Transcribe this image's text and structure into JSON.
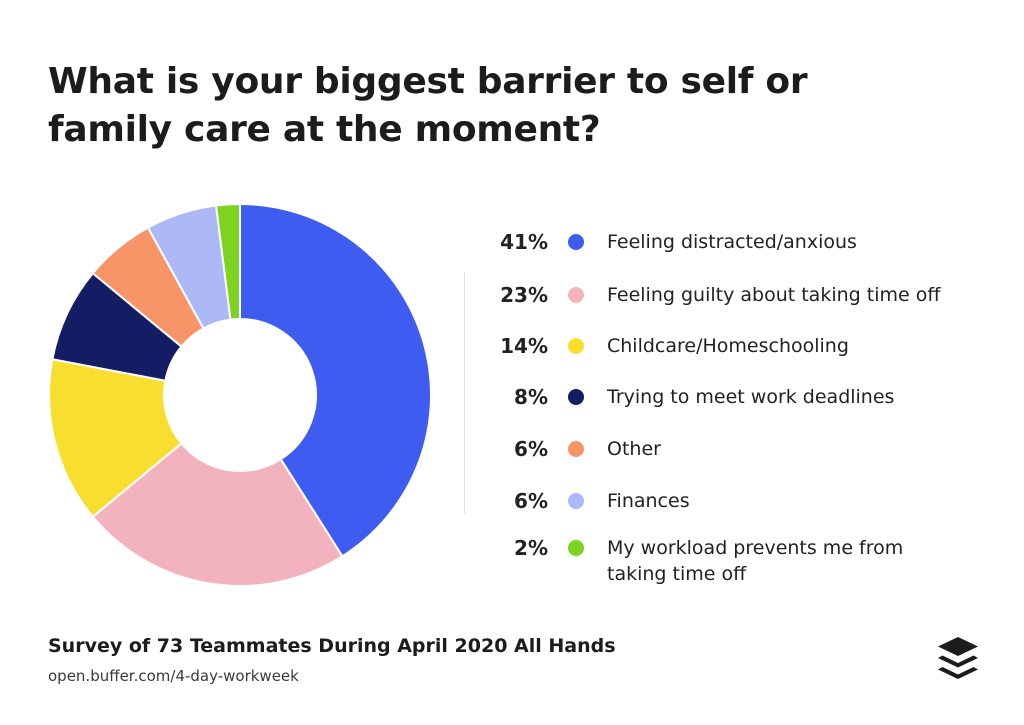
{
  "title_lines": [
    "What is your biggest barrier to self or",
    "family care at the moment?"
  ],
  "footer": {
    "title": "Survey of 73 Teammates During April 2020 All Hands",
    "url": "open.buffer.com/4-day-workweek"
  },
  "logo": {
    "icon": "buffer-stack-icon"
  },
  "legend": [
    {
      "percent": "41%",
      "label_lines": [
        "Feeling distracted/anxious"
      ],
      "color": "#3f5cf0"
    },
    {
      "percent": "23%",
      "label_lines": [
        "Feeling guilty about taking time off"
      ],
      "color": "#f2b3bf"
    },
    {
      "percent": "14%",
      "label_lines": [
        "Childcare/Homeschooling"
      ],
      "color": "#f8df2f"
    },
    {
      "percent": "8%",
      "label_lines": [
        "Trying to meet work deadlines"
      ],
      "color": "#141d63"
    },
    {
      "percent": "6%",
      "label_lines": [
        "Other"
      ],
      "color": "#f79468"
    },
    {
      "percent": "6%",
      "label_lines": [
        "Finances"
      ],
      "color": "#adb9f7"
    },
    {
      "percent": "2%",
      "label_lines": [
        "My workload prevents me from",
        "taking time off"
      ],
      "color": "#7ed321"
    }
  ],
  "chart_data": {
    "type": "pie",
    "donut": true,
    "title": "What is your biggest barrier to self or family care at the moment?",
    "categories": [
      "Feeling distracted/anxious",
      "Feeling guilty about taking time off",
      "Childcare/Homeschooling",
      "Trying to meet work deadlines",
      "Other",
      "Finances",
      "My workload prevents me from taking time off"
    ],
    "values": [
      41,
      23,
      14,
      8,
      6,
      6,
      2
    ],
    "colors": [
      "#3f5cf0",
      "#f2b3bf",
      "#f8df2f",
      "#141d63",
      "#f79468",
      "#adb9f7",
      "#7ed321"
    ],
    "legend_position": "right",
    "direction": "clockwise from top"
  }
}
